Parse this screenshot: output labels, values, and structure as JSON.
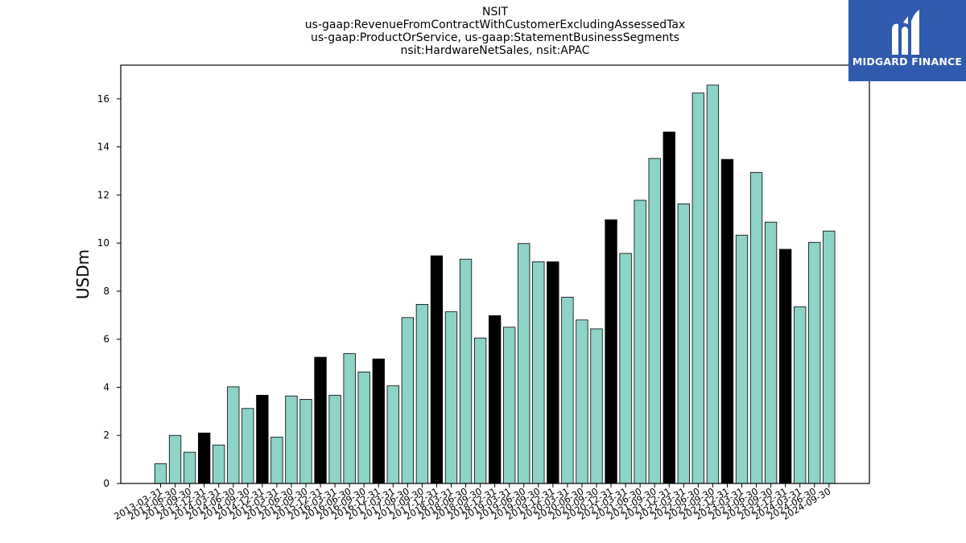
{
  "chart_data": {
    "type": "bar",
    "title_lines": [
      "NSIT",
      "us-gaap:RevenueFromContractWithCustomerExcludingAssessedTax",
      "us-gaap:ProductOrService, us-gaap:StatementBusinessSegments",
      "nsit:HardwareNetSales, nsit:APAC"
    ],
    "ylabel": "USDm",
    "ylim": [
      0,
      17.4
    ],
    "yticks": [
      0,
      2,
      4,
      6,
      8,
      10,
      12,
      14,
      16
    ],
    "categories": [
      "2013-03-31",
      "2013-06-30",
      "2013-09-30",
      "2013-12-31",
      "2014-03-31",
      "2014-06-30",
      "2014-09-30",
      "2014-12-31",
      "2015-03-31",
      "2015-06-30",
      "2015-09-30",
      "2015-12-31",
      "2016-03-31",
      "2016-06-30",
      "2016-09-30",
      "2016-12-31",
      "2017-03-31",
      "2017-06-30",
      "2017-09-30",
      "2017-12-31",
      "2018-03-31",
      "2018-06-30",
      "2018-09-30",
      "2018-12-31",
      "2019-03-31",
      "2019-06-30",
      "2019-09-30",
      "2019-12-31",
      "2020-03-31",
      "2020-06-30",
      "2020-09-30",
      "2020-12-31",
      "2021-03-31",
      "2021-06-30",
      "2021-09-30",
      "2021-12-31",
      "2022-03-31",
      "2022-06-30",
      "2022-09-30",
      "2022-12-31",
      "2023-03-31",
      "2023-06-30",
      "2023-09-30",
      "2023-12-31",
      "2024-03-31",
      "2024-06-30",
      "2024-09-30"
    ],
    "values": [
      0.82,
      2.0,
      1.3,
      2.1,
      1.6,
      4.02,
      3.12,
      3.67,
      1.93,
      3.64,
      3.5,
      5.25,
      3.67,
      5.4,
      4.64,
      5.18,
      4.06,
      6.9,
      7.45,
      9.47,
      7.14,
      9.33,
      6.05,
      6.98,
      6.5,
      9.98,
      9.22,
      9.22,
      7.75,
      6.8,
      6.43,
      10.97,
      9.57,
      11.78,
      13.52,
      14.62,
      11.63,
      16.24,
      16.57,
      13.48,
      10.33,
      12.94,
      10.87,
      9.74,
      7.35,
      10.03,
      10.5
    ],
    "highlight_quarter": "12-31",
    "colors": {
      "bar": "#8dd3c7",
      "highlight": "#000000",
      "edge": "#000000"
    },
    "grid": false,
    "legend": "none"
  },
  "logo": {
    "text": "MIDGARD FINANCE",
    "background": "#2f5aad"
  }
}
